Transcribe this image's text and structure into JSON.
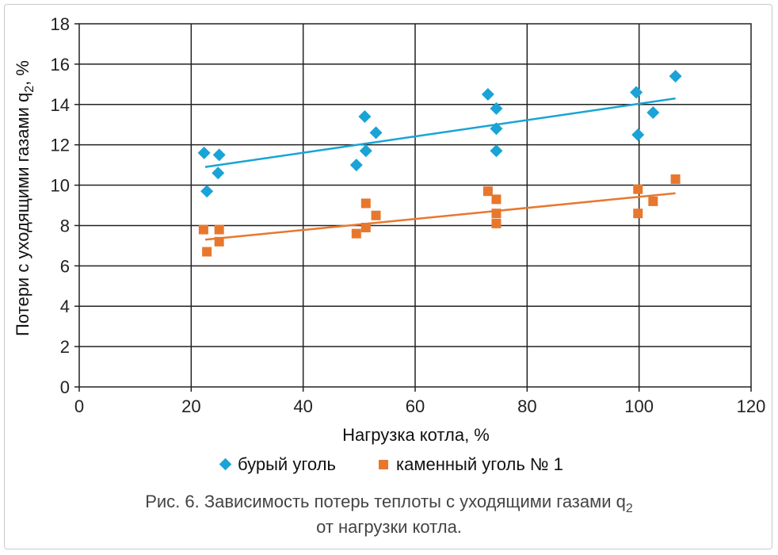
{
  "chart_data": {
    "type": "scatter",
    "xlabel": "Нагрузка котла, %",
    "ylabel_main": "Потери с уходящими газами q",
    "ylabel_sub": "2",
    "ylabel_tail": ", %",
    "xlim": [
      0,
      120
    ],
    "ylim": [
      0,
      18
    ],
    "x_ticks": [
      0,
      20,
      40,
      60,
      80,
      100,
      120
    ],
    "y_ticks": [
      0,
      2,
      4,
      6,
      8,
      10,
      12,
      14,
      16,
      18
    ],
    "grid": true,
    "legend_position": "bottom",
    "series": [
      {
        "name": "бурый уголь",
        "marker": "diamond",
        "color": "#1aa3d6",
        "points": [
          [
            22.3,
            11.6
          ],
          [
            22.8,
            9.7
          ],
          [
            24.8,
            10.6
          ],
          [
            25.0,
            11.5
          ],
          [
            49.5,
            11.0
          ],
          [
            51.2,
            11.7
          ],
          [
            51.0,
            13.4
          ],
          [
            53.0,
            12.6
          ],
          [
            73.0,
            14.5
          ],
          [
            74.5,
            13.8
          ],
          [
            74.5,
            12.8
          ],
          [
            74.5,
            11.7
          ],
          [
            99.5,
            14.6
          ],
          [
            99.8,
            12.5
          ],
          [
            102.5,
            13.6
          ],
          [
            106.5,
            15.4
          ]
        ],
        "trend": [
          [
            22.5,
            10.9
          ],
          [
            106.5,
            14.3
          ]
        ]
      },
      {
        "name": "каменный уголь № 1",
        "marker": "square",
        "color": "#e8772e",
        "points": [
          [
            22.2,
            7.8
          ],
          [
            22.8,
            6.7
          ],
          [
            25.0,
            7.8
          ],
          [
            25.0,
            7.2
          ],
          [
            49.5,
            7.6
          ],
          [
            51.2,
            7.9
          ],
          [
            51.2,
            9.1
          ],
          [
            53.0,
            8.5
          ],
          [
            73.0,
            9.7
          ],
          [
            74.5,
            9.3
          ],
          [
            74.5,
            8.6
          ],
          [
            74.5,
            8.1
          ],
          [
            99.8,
            9.8
          ],
          [
            99.8,
            8.6
          ],
          [
            102.5,
            9.2
          ],
          [
            106.5,
            10.3
          ]
        ],
        "trend": [
          [
            22.5,
            7.3
          ],
          [
            106.5,
            9.6
          ]
        ]
      }
    ]
  },
  "caption": {
    "line1_main": "Рис. 6. Зависимость потерь теплоты с уходящими газами q",
    "line1_sub": "2",
    "line2": "от нагрузки котла."
  }
}
